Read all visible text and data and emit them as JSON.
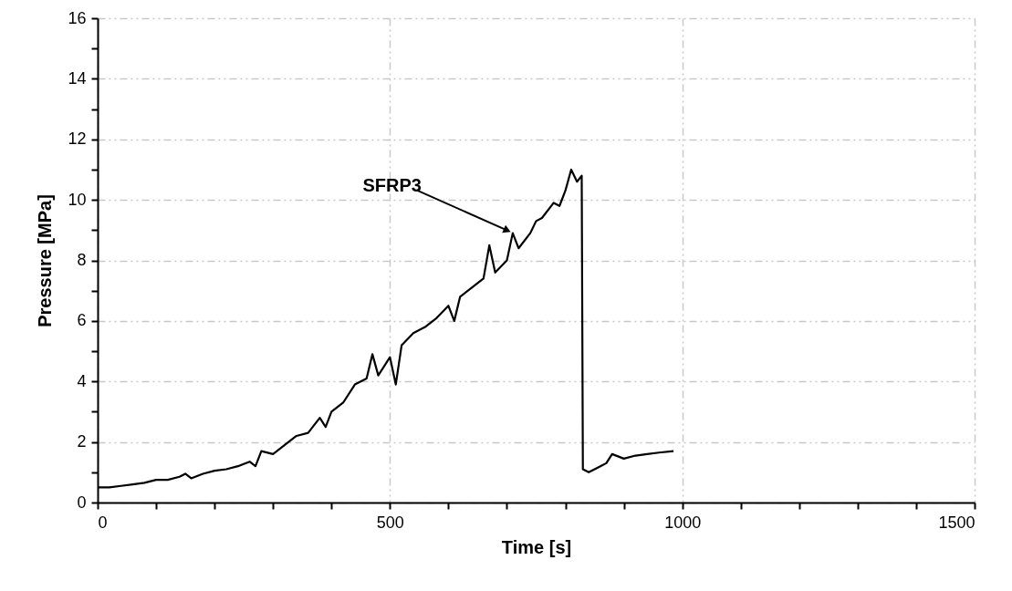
{
  "chart_data": {
    "type": "line",
    "xlabel": "Time [s]",
    "ylabel": "Pressure  [MPa]",
    "xlim": [
      0,
      1500
    ],
    "ylim": [
      0,
      16
    ],
    "xticks": [
      0,
      {
        "value": 100,
        "label": null
      },
      {
        "value": 200,
        "label": null
      },
      {
        "value": 300,
        "label": null
      },
      {
        "value": 400,
        "label": null
      },
      500,
      {
        "value": 600,
        "label": null
      },
      {
        "value": 700,
        "label": null
      },
      {
        "value": 800,
        "label": null
      },
      {
        "value": 900,
        "label": null
      },
      1000,
      {
        "value": 1100,
        "label": null
      },
      {
        "value": 1200,
        "label": null
      },
      {
        "value": 1300,
        "label": null
      },
      {
        "value": 1400,
        "label": null
      },
      1500
    ],
    "yticks": [
      0,
      {
        "value": 1,
        "label": null
      },
      2,
      {
        "value": 3,
        "label": null
      },
      4,
      {
        "value": 5,
        "label": null
      },
      6,
      {
        "value": 7,
        "label": null
      },
      8,
      {
        "value": 9,
        "label": null
      },
      10,
      {
        "value": 11,
        "label": null
      },
      12,
      {
        "value": 13,
        "label": null
      },
      14,
      {
        "value": 15,
        "label": null
      },
      16
    ],
    "grid": true,
    "line_style": "solid",
    "annotations": [
      {
        "text": "SFRP3",
        "x": 710,
        "y": 8.9
      }
    ],
    "series": [
      {
        "color": "#000000",
        "x": [
          0,
          20,
          40,
          60,
          80,
          100,
          120,
          140,
          150,
          160,
          180,
          200,
          220,
          240,
          260,
          270,
          280,
          300,
          320,
          340,
          360,
          380,
          390,
          400,
          420,
          440,
          460,
          470,
          480,
          490,
          500,
          510,
          520,
          540,
          560,
          580,
          600,
          610,
          620,
          640,
          660,
          670,
          680,
          700,
          710,
          720,
          740,
          750,
          760,
          780,
          790,
          800,
          810,
          820,
          828,
          830,
          840,
          850,
          860,
          870,
          880,
          900,
          920,
          940,
          960,
          985
        ],
        "values": [
          0.5,
          0.5,
          0.55,
          0.6,
          0.65,
          0.75,
          0.75,
          0.85,
          0.95,
          0.8,
          0.95,
          1.05,
          1.1,
          1.2,
          1.35,
          1.2,
          1.7,
          1.6,
          1.9,
          2.2,
          2.3,
          2.8,
          2.5,
          3.0,
          3.3,
          3.9,
          4.1,
          4.9,
          4.2,
          4.5,
          4.8,
          3.9,
          5.2,
          5.6,
          5.8,
          6.1,
          6.5,
          6.0,
          6.8,
          7.1,
          7.4,
          8.5,
          7.6,
          8.0,
          8.9,
          8.4,
          8.9,
          9.3,
          9.4,
          9.9,
          9.8,
          10.3,
          11.0,
          10.6,
          10.8,
          1.1,
          1.0,
          1.1,
          1.2,
          1.3,
          1.6,
          1.45,
          1.55,
          1.6,
          1.65,
          1.7
        ]
      }
    ]
  }
}
